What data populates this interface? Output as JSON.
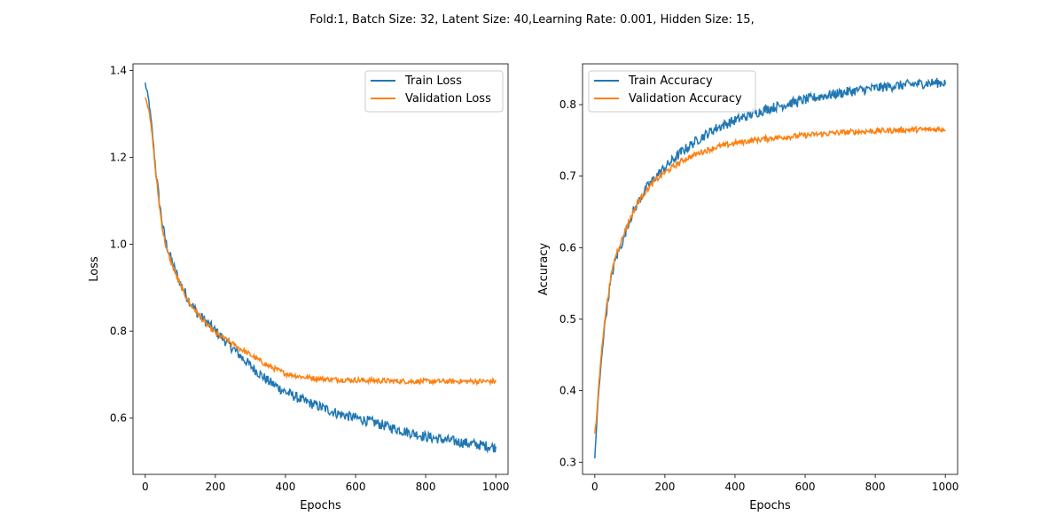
{
  "figure": {
    "suptitle": "Fold:1,  Batch Size: 32, Latent Size: 40,Learning Rate: 0.001, Hidden Size: 15,"
  },
  "chart_data": [
    {
      "type": "line",
      "xlabel": "Epochs",
      "ylabel": "Loss",
      "xlim": [
        -35,
        1035
      ],
      "ylim": [
        0.47,
        1.415
      ],
      "xticks": [
        0,
        200,
        400,
        600,
        800,
        1000
      ],
      "xtick_labels": [
        "0",
        "200",
        "400",
        "600",
        "800",
        "1000"
      ],
      "yticks": [
        0.6,
        0.8,
        1.0,
        1.2,
        1.4
      ],
      "ytick_labels": [
        "0.6",
        "0.8",
        "1.0",
        "1.2",
        "1.4"
      ],
      "grid": false,
      "legend": "upper right",
      "x": [
        0,
        10,
        20,
        30,
        40,
        50,
        60,
        80,
        100,
        125,
        150,
        175,
        200,
        250,
        300,
        350,
        400,
        450,
        500,
        550,
        600,
        650,
        700,
        750,
        800,
        850,
        900,
        950,
        1000
      ],
      "series": [
        {
          "name": "Train Loss",
          "color": "#1f77b4",
          "values": [
            1.37,
            1.33,
            1.26,
            1.17,
            1.1,
            1.04,
            1.0,
            0.95,
            0.91,
            0.87,
            0.84,
            0.82,
            0.8,
            0.76,
            0.72,
            0.685,
            0.66,
            0.64,
            0.625,
            0.61,
            0.6,
            0.59,
            0.578,
            0.567,
            0.557,
            0.55,
            0.544,
            0.538,
            0.532
          ]
        },
        {
          "name": "Validation Loss",
          "color": "#ff7f0e",
          "values": [
            1.34,
            1.31,
            1.25,
            1.16,
            1.09,
            1.03,
            0.99,
            0.945,
            0.905,
            0.865,
            0.84,
            0.815,
            0.795,
            0.77,
            0.745,
            0.72,
            0.702,
            0.694,
            0.69,
            0.688,
            0.687,
            0.686,
            0.685,
            0.684,
            0.684,
            0.684,
            0.684,
            0.684,
            0.684
          ]
        }
      ]
    },
    {
      "type": "line",
      "xlabel": "Epochs",
      "ylabel": "Accuracy",
      "xlim": [
        -35,
        1035
      ],
      "ylim": [
        0.283,
        0.857
      ],
      "xticks": [
        0,
        200,
        400,
        600,
        800,
        1000
      ],
      "xtick_labels": [
        "0",
        "200",
        "400",
        "600",
        "800",
        "1000"
      ],
      "yticks": [
        0.3,
        0.4,
        0.5,
        0.6,
        0.7,
        0.8
      ],
      "ytick_labels": [
        "0.3",
        "0.4",
        "0.5",
        "0.6",
        "0.7",
        "0.8"
      ],
      "grid": false,
      "legend": "upper left",
      "x": [
        0,
        5,
        10,
        20,
        30,
        40,
        50,
        60,
        80,
        100,
        125,
        150,
        175,
        200,
        250,
        300,
        350,
        400,
        450,
        500,
        550,
        600,
        650,
        700,
        750,
        800,
        850,
        900,
        950,
        1000
      ],
      "series": [
        {
          "name": "Train Accuracy",
          "color": "#1f77b4",
          "values": [
            0.305,
            0.35,
            0.39,
            0.45,
            0.5,
            0.535,
            0.565,
            0.585,
            0.61,
            0.64,
            0.665,
            0.685,
            0.7,
            0.712,
            0.735,
            0.753,
            0.768,
            0.778,
            0.787,
            0.795,
            0.801,
            0.807,
            0.812,
            0.816,
            0.82,
            0.823,
            0.826,
            0.828,
            0.83,
            0.831
          ]
        },
        {
          "name": "Validation Accuracy",
          "color": "#ff7f0e",
          "values": [
            0.34,
            0.36,
            0.4,
            0.46,
            0.505,
            0.54,
            0.57,
            0.59,
            0.615,
            0.64,
            0.665,
            0.682,
            0.695,
            0.705,
            0.722,
            0.733,
            0.741,
            0.746,
            0.75,
            0.753,
            0.755,
            0.757,
            0.759,
            0.761,
            0.762,
            0.763,
            0.764,
            0.765,
            0.765,
            0.766
          ]
        }
      ]
    }
  ]
}
